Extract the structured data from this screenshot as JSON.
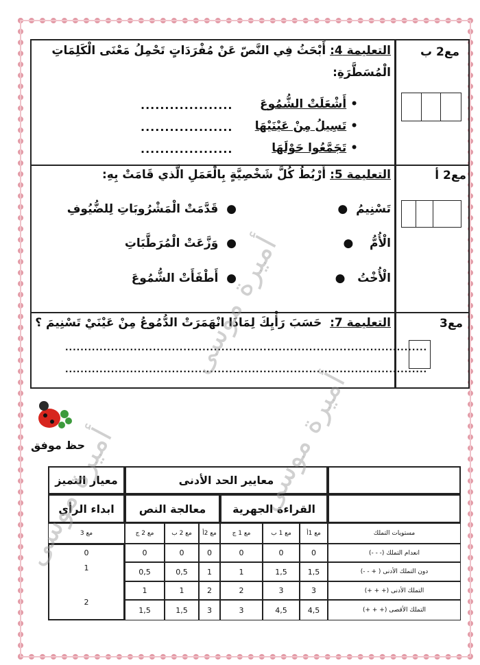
{
  "task4": {
    "criterion": "مع2 ب",
    "label": "التعليمة 4:",
    "text": "أَبْحَثُ فِي النَّصّ عَنْ مُفْرَدَاتٍ تَحْمِلُ مَعْنَى الْكَلِمَاتِ",
    "text2": "الْمُسَطَّرَةِ:",
    "items": [
      "أَشْعَلَتْ الشُّمُوعَ",
      "تَسِيلُ مِنْ عَيْنَيْهَا",
      "تَجَمَّعُوا حَوْلَهَا"
    ],
    "blank": "..................."
  },
  "task5": {
    "criterion": "مع2 أ",
    "label": "التعليمة 5:",
    "text": "أَرْبُطُ كُلَّ شَخْصِيَّةٍ بِالْعَمَلِ الَّذي قَامَتْ بِهِ:",
    "characters": [
      "تَسْنِيمُ",
      "الْأُمُّ",
      "الْأُخْتُ"
    ],
    "actions": [
      "قَدَّمَتْ الْمَشْرُوبَاتِ لِلضُّيُوفِ",
      "وَزَّعَتْ الْمُرَطَّبَاتِ",
      "أَطْفَأَتْ الشُّمُوعَ"
    ]
  },
  "task7": {
    "criterion": "مع3",
    "label": "التعليمة 7:",
    "text": "حَسَبَ رَأْيِكَ لِمَاذَا انْهَمَرَتْ الدُّمُوعُ مِنْ عَيْنَيْ تَسْنِيمَ ؟",
    "line": "..............................................................................................."
  },
  "good_luck": "حظ موفق",
  "watermark": "أميرة موسى",
  "grid": {
    "excellence": "معيار التميز",
    "minimum": "معايير الحد الأدنى",
    "opinion": "ابداء الرأي",
    "text_processing": "معالجة النص",
    "reading": "القراءة الجهرية",
    "levels_header": "مستويات التملك",
    "cols": [
      "مع 1أ",
      "مع 1 ب",
      "مع 1 ج",
      "مع 2أ",
      "مع 2 ب",
      "مع 2 ج"
    ],
    "col_excellence": "مع 3",
    "rows": [
      {
        "label": "انعدام التملك (- - -)",
        "values": [
          "0",
          "0",
          "0",
          "0",
          "0",
          "0"
        ]
      },
      {
        "label": "دون التملك الأدنى ( + - -)",
        "values": [
          "1,5",
          "1,5",
          "1",
          "1",
          "0,5",
          "0,5"
        ]
      },
      {
        "label": "التملك الأدنى (+ + +)",
        "values": [
          "3",
          "3",
          "2",
          "2",
          "1",
          "1"
        ]
      },
      {
        "label": "التملك الأقصى (+ + +)",
        "values": [
          "4,5",
          "4,5",
          "3",
          "3",
          "1,5",
          "1,5"
        ]
      }
    ],
    "excellence_values": [
      "0",
      "1",
      "2"
    ]
  }
}
